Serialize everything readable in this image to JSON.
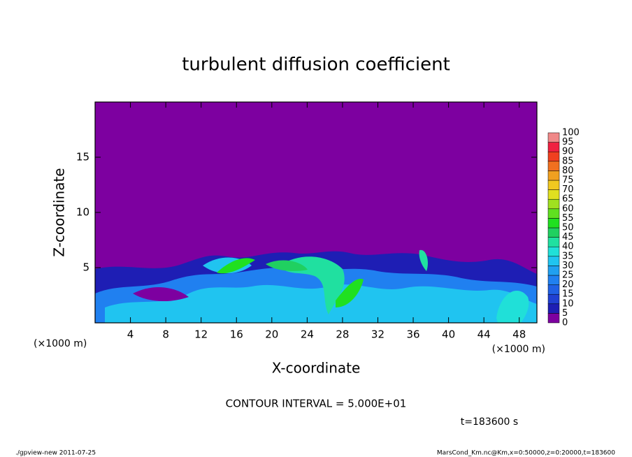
{
  "chart_data": {
    "type": "heatmap",
    "title": "turbulent diffusion coefficient",
    "xlabel": "X-coordinate",
    "ylabel": "Z-coordinate",
    "x_unit_label": "(×1000 m)",
    "y_unit_label": "(×1000 m)",
    "xlim": [
      0,
      50
    ],
    "ylim": [
      0,
      20
    ],
    "xticks": [
      4,
      8,
      12,
      16,
      20,
      24,
      28,
      32,
      36,
      40,
      44,
      48
    ],
    "yticks": [
      5,
      10,
      15
    ],
    "colorbar": {
      "levels": [
        0,
        5,
        10,
        15,
        20,
        25,
        30,
        35,
        40,
        45,
        50,
        55,
        60,
        65,
        70,
        75,
        80,
        85,
        90,
        95,
        100
      ],
      "colors": [
        "#7d00a0",
        "#1e1eb4",
        "#2040d2",
        "#2060e4",
        "#2080f0",
        "#20a0f0",
        "#20c4f0",
        "#20e0d8",
        "#20e0a0",
        "#20d060",
        "#20e020",
        "#60e020",
        "#a0e020",
        "#e0e020",
        "#f0c820",
        "#f0a020",
        "#f07020",
        "#f04020",
        "#f02040",
        "#f08888"
      ]
    },
    "contour_interval": "CONTOUR INTERVAL = 5.000E+01",
    "time_label": "t=183600 s",
    "footer_left": "./gpview-new   2011-07-25",
    "footer_right": "MarsCond_Km.nc@Km,x=0:50000,z=0:20000,t=183600"
  }
}
